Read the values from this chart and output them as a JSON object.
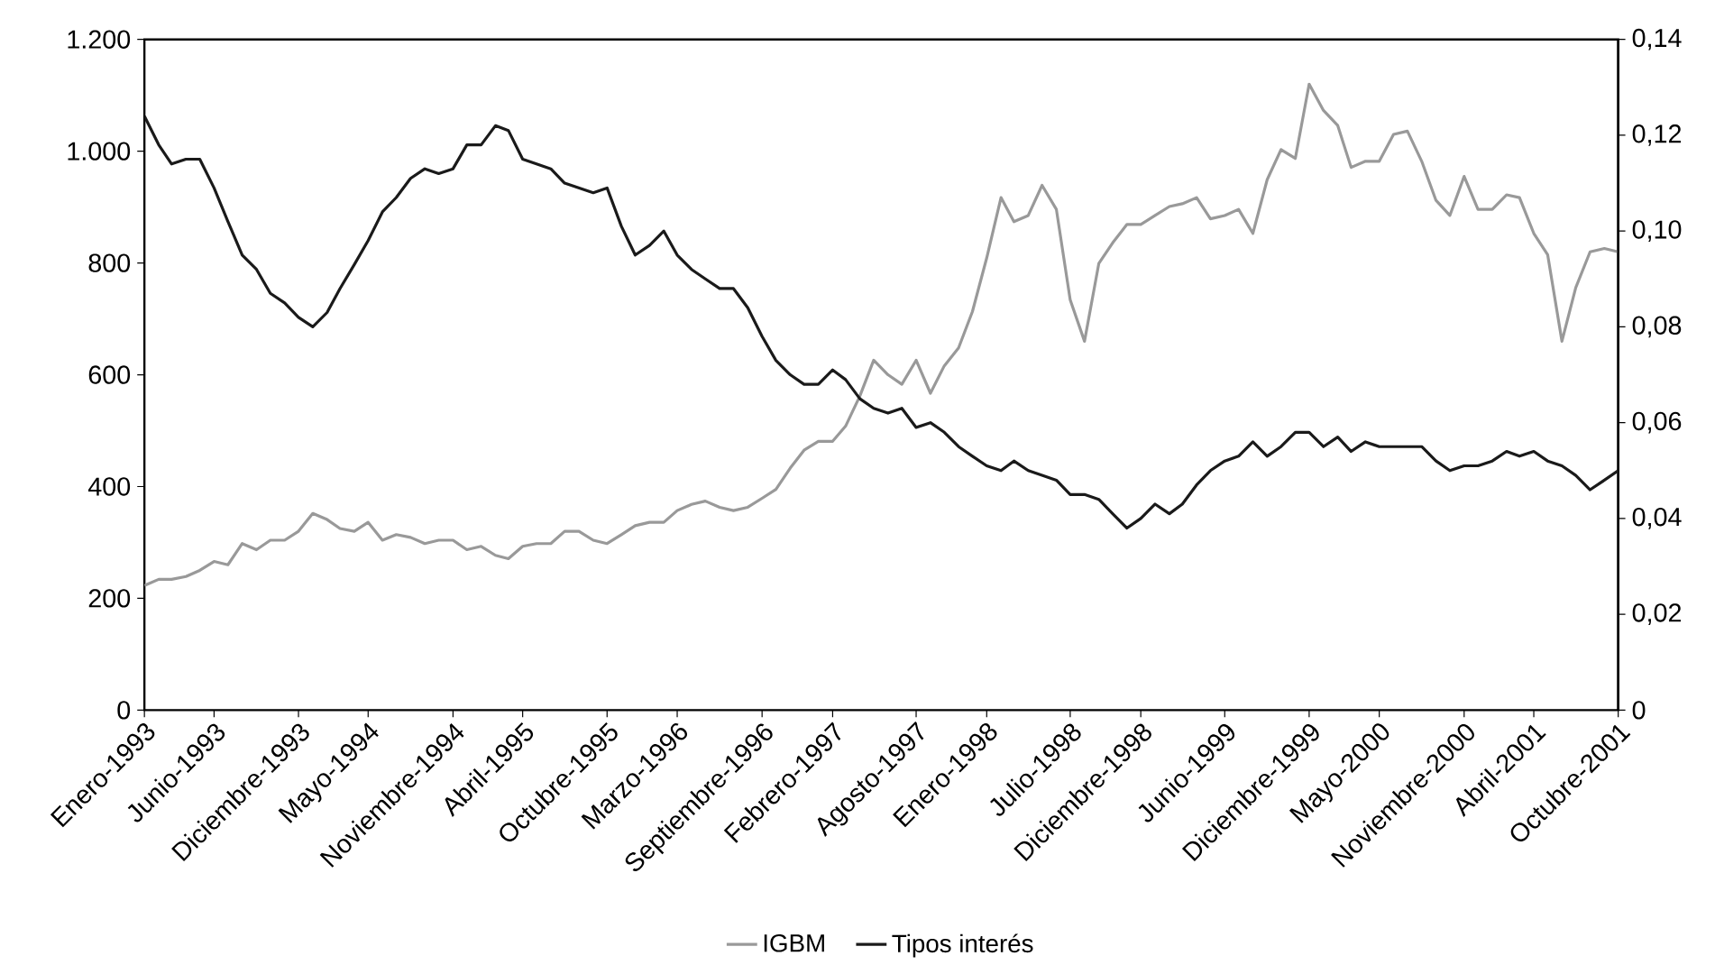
{
  "chart_data": {
    "type": "line",
    "legend": "bottom",
    "marker": "none",
    "line_style": "solid",
    "x": [
      "1993-01",
      "1993-02",
      "1993-03",
      "1993-04",
      "1993-05",
      "1993-06",
      "1993-07",
      "1993-08",
      "1993-09",
      "1993-10",
      "1993-11",
      "1993-12",
      "1994-01",
      "1994-02",
      "1994-03",
      "1994-04",
      "1994-05",
      "1994-06",
      "1994-07",
      "1994-08",
      "1994-09",
      "1994-10",
      "1994-11",
      "1994-12",
      "1995-01",
      "1995-02",
      "1995-03",
      "1995-04",
      "1995-05",
      "1995-06",
      "1995-07",
      "1995-08",
      "1995-09",
      "1995-10",
      "1995-11",
      "1995-12",
      "1996-01",
      "1996-02",
      "1996-03",
      "1996-04",
      "1996-05",
      "1996-06",
      "1996-07",
      "1996-08",
      "1996-09",
      "1996-10",
      "1996-11",
      "1996-12",
      "1997-01",
      "1997-02",
      "1997-03",
      "1997-04",
      "1997-05",
      "1997-06",
      "1997-07",
      "1997-08",
      "1997-09",
      "1997-10",
      "1997-11",
      "1997-12",
      "1998-01",
      "1998-02",
      "1998-03",
      "1998-04",
      "1998-05",
      "1998-06",
      "1998-07",
      "1998-08",
      "1998-09",
      "1998-10",
      "1998-11",
      "1998-12",
      "1999-01",
      "1999-02",
      "1999-03",
      "1999-04",
      "1999-05",
      "1999-06",
      "1999-07",
      "1999-08",
      "1999-09",
      "1999-10",
      "1999-11",
      "1999-12",
      "2000-01",
      "2000-02",
      "2000-03",
      "2000-04",
      "2000-05",
      "2000-06",
      "2000-07",
      "2000-08",
      "2000-09",
      "2000-10",
      "2000-11",
      "2000-12",
      "2001-01",
      "2001-02",
      "2001-03",
      "2001-04",
      "2001-05",
      "2001-06",
      "2001-07",
      "2001-08",
      "2001-09",
      "2001-10"
    ],
    "series": [
      {
        "name": "IGBM",
        "color": "#999999",
        "values": [
          223,
          234,
          234,
          239,
          250,
          266,
          260,
          298,
          287,
          304,
          304,
          320,
          352,
          341,
          325,
          320,
          336,
          304,
          314,
          309,
          298,
          304,
          304,
          287,
          293,
          277,
          271,
          293,
          298,
          298,
          320,
          320,
          304,
          298,
          314,
          330,
          336,
          336,
          357,
          368,
          374,
          363,
          357,
          363,
          379,
          395,
          433,
          465,
          481,
          481,
          508,
          562,
          626,
          600,
          583,
          626,
          567,
          616,
          648,
          713,
          809,
          917,
          874,
          885,
          939,
          896,
          734,
          660,
          799,
          836,
          869,
          869,
          885,
          901,
          906,
          917,
          879,
          885,
          896,
          853,
          949,
          1003,
          987,
          1120,
          1073,
          1046,
          971,
          982,
          982,
          1030,
          1036,
          982,
          912,
          885,
          955,
          896,
          896,
          922,
          917,
          853,
          815,
          660,
          756,
          820,
          826,
          820
        ]
      },
      {
        "name": "Tipos interés",
        "color": "#1a1a1a",
        "axis": "y2",
        "values": [
          0.124,
          0.118,
          0.114,
          0.115,
          0.115,
          0.109,
          0.102,
          0.095,
          0.092,
          0.087,
          0.085,
          0.082,
          0.08,
          0.083,
          0.088,
          0.093,
          0.098,
          0.104,
          0.107,
          0.111,
          0.113,
          0.112,
          0.113,
          0.118,
          0.118,
          0.122,
          0.121,
          0.115,
          0.114,
          0.113,
          0.11,
          0.109,
          0.108,
          0.109,
          0.101,
          0.095,
          0.097,
          0.1,
          0.095,
          0.092,
          0.09,
          0.088,
          0.088,
          0.084,
          0.078,
          0.073,
          0.07,
          0.068,
          0.068,
          0.071,
          0.069,
          0.065,
          0.063,
          0.062,
          0.063,
          0.059,
          0.06,
          0.058,
          0.055,
          0.053,
          0.051,
          0.05,
          0.052,
          0.05,
          0.049,
          0.048,
          0.045,
          0.045,
          0.044,
          0.041,
          0.038,
          0.04,
          0.043,
          0.041,
          0.043,
          0.047,
          0.05,
          0.052,
          0.053,
          0.056,
          0.053,
          0.055,
          0.058,
          0.058,
          0.055,
          0.057,
          0.054,
          0.056,
          0.055,
          0.055,
          0.055,
          0.055,
          0.052,
          0.05,
          0.051,
          0.051,
          0.052,
          0.054,
          0.053,
          0.054,
          0.052,
          0.051,
          0.049,
          0.046,
          0.048,
          0.05
        ]
      }
    ],
    "xlim": [
      "1993-01",
      "2001-10"
    ],
    "xticks": [
      {
        "value": "1993-01",
        "label": "Enero-1993"
      },
      {
        "value": "1993-06",
        "label": "Junio-1993"
      },
      {
        "value": "1993-12",
        "label": "Diciembre-1993"
      },
      {
        "value": "1994-05",
        "label": "Mayo-1994"
      },
      {
        "value": "1994-11",
        "label": "Noviembre-1994"
      },
      {
        "value": "1995-04",
        "label": "Abril-1995"
      },
      {
        "value": "1995-10",
        "label": "Octubre-1995"
      },
      {
        "value": "1996-03",
        "label": "Marzo-1996"
      },
      {
        "value": "1996-09",
        "label": "Septiembre-1996"
      },
      {
        "value": "1997-02",
        "label": "Febrero-1997"
      },
      {
        "value": "1997-08",
        "label": "Agosto-1997"
      },
      {
        "value": "1998-01",
        "label": "Enero-1998"
      },
      {
        "value": "1998-07",
        "label": "Julio-1998"
      },
      {
        "value": "1998-12",
        "label": "Diciembre-1998"
      },
      {
        "value": "1999-06",
        "label": "Junio-1999"
      },
      {
        "value": "1999-12",
        "label": "Diciembre-1999"
      },
      {
        "value": "2000-05",
        "label": "Mayo-2000"
      },
      {
        "value": "2000-11",
        "label": "Noviembre-2000"
      },
      {
        "value": "2001-04",
        "label": "Abril-2001"
      },
      {
        "value": "2001-10",
        "label": "Octubre-2001"
      }
    ],
    "ylim": [
      0,
      1200
    ],
    "yticks": [
      0,
      200,
      400,
      600,
      800,
      {
        "value": 1000,
        "label": "1.000"
      },
      {
        "value": 1200,
        "label": "1.200"
      }
    ],
    "y2lim": [
      0,
      0.14
    ],
    "y2ticks": [
      0,
      {
        "value": 0.02,
        "label": "0,02"
      },
      {
        "value": 0.04,
        "label": "0,04"
      },
      {
        "value": 0.06,
        "label": "0,06"
      },
      {
        "value": 0.08,
        "label": "0,08"
      },
      {
        "value": 0.1,
        "label": "0,10"
      },
      {
        "value": 0.12,
        "label": "0,12"
      },
      {
        "value": 0.14,
        "label": "0,14"
      }
    ]
  }
}
